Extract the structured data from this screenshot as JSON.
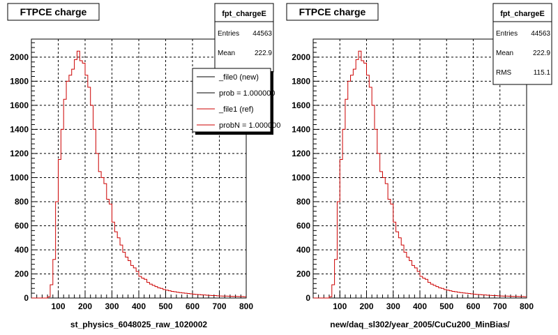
{
  "chart_data": [
    {
      "type": "histogram",
      "title": "FTPCE charge",
      "xlabel": "st_physics_6048025_raw_1020002",
      "xlim": [
        0,
        800
      ],
      "ylim": [
        0,
        2150
      ],
      "xticks": [
        100,
        200,
        300,
        400,
        500,
        600,
        700,
        800
      ],
      "yticks": [
        0,
        200,
        400,
        600,
        800,
        1000,
        1200,
        1400,
        1600,
        1800,
        2000
      ],
      "grid": true,
      "bin_width": 10,
      "series": [
        {
          "name": "_file1 (ref)",
          "color": "#cc0000",
          "x": [
            0,
            10,
            20,
            30,
            40,
            50,
            60,
            70,
            80,
            90,
            100,
            110,
            120,
            130,
            140,
            150,
            160,
            170,
            180,
            190,
            200,
            210,
            220,
            230,
            240,
            250,
            260,
            270,
            280,
            290,
            300,
            310,
            320,
            330,
            340,
            350,
            360,
            370,
            380,
            390,
            400,
            410,
            420,
            430,
            440,
            450,
            460,
            470,
            480,
            490,
            500,
            510,
            520,
            530,
            540,
            550,
            560,
            570,
            580,
            590,
            600,
            610,
            620,
            630,
            640,
            650,
            660,
            670,
            680,
            690,
            700,
            710,
            720,
            730,
            740,
            750,
            760,
            770,
            780,
            790
          ],
          "values": [
            0,
            0,
            0,
            0,
            0,
            0,
            10,
            110,
            320,
            800,
            1150,
            1400,
            1650,
            1800,
            1850,
            1900,
            1980,
            2050,
            1970,
            1950,
            1850,
            1750,
            1600,
            1400,
            1200,
            1050,
            1000,
            950,
            820,
            780,
            630,
            550,
            500,
            440,
            380,
            340,
            310,
            270,
            250,
            220,
            180,
            165,
            155,
            130,
            115,
            105,
            95,
            85,
            80,
            70,
            65,
            60,
            55,
            52,
            48,
            45,
            42,
            40,
            38,
            35,
            32,
            30,
            28,
            26,
            25,
            23,
            22,
            20,
            20,
            18,
            17,
            16,
            16,
            15,
            14,
            13,
            13,
            12,
            12,
            11
          ]
        }
      ],
      "stats": {
        "name": "fpt_chargeE",
        "entries_label": "Entries",
        "entries": "44563",
        "mean_label": "Mean",
        "mean": "222.9"
      },
      "legend": {
        "placement": "top-right",
        "entries": [
          {
            "label": "_file0 (new)",
            "color": "#000000"
          },
          {
            "label": "prob = 1.000000",
            "color": "#000000"
          },
          {
            "label": "_file1 (ref)",
            "color": "#cc0000"
          },
          {
            "label": "probN = 1.000000",
            "color": "#cc0000"
          }
        ]
      }
    },
    {
      "type": "histogram",
      "title": "FTPCE charge",
      "xlabel": "new/daq_sl302/year_2005/CuCu200_MinBias/",
      "xlim": [
        0,
        800
      ],
      "ylim": [
        0,
        2150
      ],
      "xticks": [
        100,
        200,
        300,
        400,
        500,
        600,
        700,
        800
      ],
      "yticks": [
        0,
        200,
        400,
        600,
        800,
        1000,
        1200,
        1400,
        1600,
        1800,
        2000
      ],
      "grid": true,
      "bin_width": 10,
      "series": [
        {
          "name": "",
          "color": "#cc0000",
          "x": [
            0,
            10,
            20,
            30,
            40,
            50,
            60,
            70,
            80,
            90,
            100,
            110,
            120,
            130,
            140,
            150,
            160,
            170,
            180,
            190,
            200,
            210,
            220,
            230,
            240,
            250,
            260,
            270,
            280,
            290,
            300,
            310,
            320,
            330,
            340,
            350,
            360,
            370,
            380,
            390,
            400,
            410,
            420,
            430,
            440,
            450,
            460,
            470,
            480,
            490,
            500,
            510,
            520,
            530,
            540,
            550,
            560,
            570,
            580,
            590,
            600,
            610,
            620,
            630,
            640,
            650,
            660,
            670,
            680,
            690,
            700,
            710,
            720,
            730,
            740,
            750,
            760,
            770,
            780,
            790
          ],
          "values": [
            0,
            0,
            0,
            0,
            0,
            0,
            10,
            110,
            320,
            800,
            1150,
            1400,
            1650,
            1800,
            1850,
            1900,
            1980,
            2050,
            1970,
            1950,
            1850,
            1750,
            1600,
            1400,
            1200,
            1050,
            1000,
            950,
            820,
            780,
            630,
            550,
            500,
            440,
            380,
            340,
            310,
            270,
            250,
            220,
            180,
            165,
            155,
            130,
            115,
            105,
            95,
            85,
            80,
            70,
            65,
            60,
            55,
            52,
            48,
            45,
            42,
            40,
            38,
            35,
            32,
            30,
            28,
            26,
            25,
            23,
            22,
            20,
            20,
            18,
            17,
            16,
            16,
            15,
            14,
            13,
            13,
            12,
            12,
            11
          ]
        }
      ],
      "stats": {
        "name": "fpt_chargeE",
        "entries_label": "Entries",
        "entries": "44563",
        "mean_label": "Mean",
        "mean": "222.9",
        "rms_label": "RMS",
        "rms": "115.1"
      }
    }
  ]
}
